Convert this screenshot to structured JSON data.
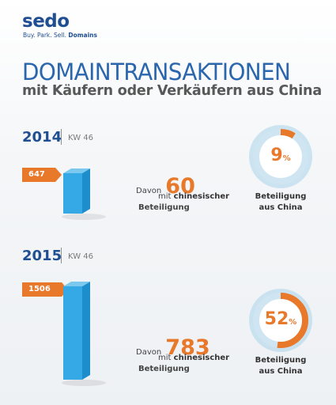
{
  "header": {
    "logo": "sedo",
    "tagline_prefix": "Buy. Park. Sell.",
    "tagline_bold": "Domains"
  },
  "title": "DOMAINTRANSAKTIONEN",
  "subtitle": "mit Käufern oder Verkäufern aus China",
  "colors": {
    "accent": "#e8782a",
    "brand": "#1f4f92",
    "bar": "#34a9e6",
    "ring": "#a9d3ea"
  },
  "chart_data": [
    {
      "type": "bar",
      "year": "2014",
      "week": "KW 46",
      "total_value": 647,
      "total_label": "647",
      "davon_prefix": "Davon",
      "china_value": 60,
      "china_label": "60",
      "mit_text": "mit",
      "mit_bold": "chinesischer",
      "beteiligung_text": "Beteiligung",
      "share_percent": 9,
      "share_number": "9",
      "share_unit": "%",
      "gauge_label_line1": "Beteiligung",
      "gauge_label_line2": "aus China"
    },
    {
      "type": "bar",
      "year": "2015",
      "week": "KW 46",
      "total_value": 1506,
      "total_label": "1506",
      "davon_prefix": "Davon",
      "china_value": 783,
      "china_label": "783",
      "mit_text": "mit",
      "mit_bold": "chinesischer",
      "beteiligung_text": "Beteiligung",
      "share_percent": 52,
      "share_number": "52",
      "share_unit": "%",
      "gauge_label_line1": "Beteiligung",
      "gauge_label_line2": "aus China"
    }
  ]
}
